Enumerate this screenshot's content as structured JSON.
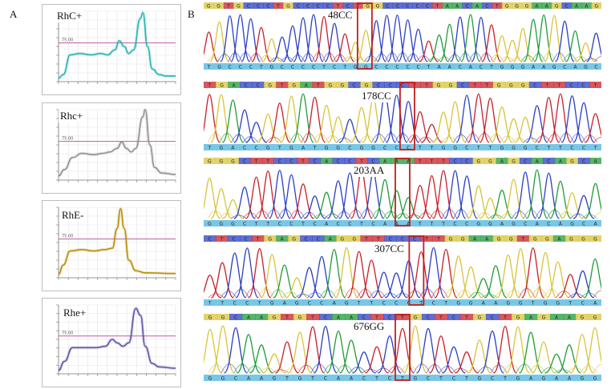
{
  "figure": {
    "panel_a_label": "A",
    "panel_b_label": "B"
  },
  "melt_panels": [
    {
      "label": "RhC+",
      "color": "#1fb3b3",
      "threshold_label": "75.00"
    },
    {
      "label": "Rhc+",
      "color": "#8e8e8e",
      "threshold_label": "75.00"
    },
    {
      "label": "RhE-",
      "color": "#b88a00",
      "threshold_label": "75.00"
    },
    {
      "label": "Rhe+",
      "color": "#5a4fa8",
      "threshold_label": "75.00"
    }
  ],
  "sequence_panels": [
    {
      "label": "48CC",
      "bases_top": "GGTGCCCTGCCCCTCTGGCCCCCTAACACTGGGAAGCAAG",
      "bases_bottom": "TGCCCTGCCCCTCTGGCCCCCTAACACTGGGAAGCAGC"
    },
    {
      "label": "178CC",
      "bases_top": "TGACCGTGATGGCGCCCTTGGCTTGGGCTTCCT",
      "bases_bottom": "TGACCGTGATGGCGGCCCTTGGCTTGGGCTTCCT"
    },
    {
      "label": "203AA",
      "bases_top": "GGGCTTCCTCACCTCAAATTTCCGGAGCACAGCA",
      "bases_bottom": "GGGCTTCCTCACCTCAAATTTCCGGAGCACAGCA"
    },
    {
      "label": "307CC",
      "bases_top": "CTCCTGAGCCAGGTTCCCTTGGAAGGTGGAGGG",
      "bases_bottom": "TTCCTGAGCCAGTTCCCTCTGGAAGGTGGTCA"
    },
    {
      "label": "676GG",
      "bases_top": "GGCAAGTGTCAACTCTGCTCTGCTGAGAAGG",
      "bases_bottom": "GGCAAGTGTCAACTCTGCTCTGCTGAGAAGG"
    }
  ],
  "colors": {
    "A": "#1f9c3a",
    "C": "#2b3fc4",
    "G": "#d8c43a",
    "T": "#c8202a",
    "highlight": "#c0201e",
    "threshold": "#c05aa0"
  }
}
